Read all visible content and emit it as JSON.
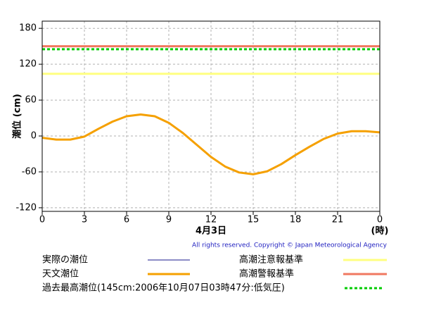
{
  "chart_data": {
    "type": "line",
    "y_label": "潮位 (cm)",
    "x_label": "4月3日",
    "x_unit": "(時)",
    "copyright": "All rights reserved. Copyright © Japan Meteorological Agency",
    "x": [
      0,
      1,
      2,
      3,
      4,
      5,
      6,
      7,
      8,
      9,
      10,
      11,
      12,
      13,
      14,
      15,
      16,
      17,
      18,
      19,
      20,
      21,
      22,
      23,
      24
    ],
    "xlim": [
      0,
      24
    ],
    "xticks": [
      0,
      3,
      6,
      9,
      12,
      15,
      18,
      21,
      {
        "value": 24,
        "label": "0"
      }
    ],
    "ylim": [
      -126,
      192
    ],
    "yticks": [
      -120,
      -60,
      0,
      60,
      120,
      180
    ],
    "grid": true,
    "series": [
      {
        "name": "実際の潮位",
        "color": "#1a1a8c",
        "values": [
          null,
          null,
          null,
          null,
          null,
          null,
          null,
          null,
          null,
          null,
          null,
          null,
          null,
          null,
          null,
          null,
          null,
          null,
          null,
          null,
          null,
          null,
          null,
          null,
          null
        ]
      },
      {
        "name": "天文潮位",
        "color": "#f5a000",
        "values": [
          -3,
          -6,
          -6,
          -1,
          12,
          24,
          33,
          36,
          33,
          22,
          5,
          -15,
          -35,
          -51,
          -61,
          -64,
          -59,
          -47,
          -32,
          -18,
          -5,
          4,
          8,
          8,
          6
        ]
      }
    ],
    "reference_lines": [
      {
        "name": "高潮注意報基準",
        "color": "#ffff80",
        "value": 104,
        "style": "solid"
      },
      {
        "name": "高潮警報基準",
        "color": "#f07860",
        "value": 150,
        "style": "solid"
      },
      {
        "name": "過去最高潮位(145cm:2006年10月07日03時47分:低気圧)",
        "color": "#00cc00",
        "value": 145,
        "style": "dotted"
      }
    ]
  }
}
